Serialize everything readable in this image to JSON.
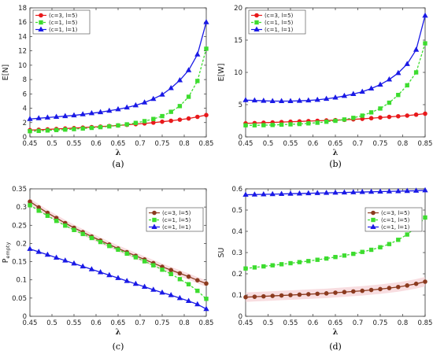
{
  "chart_data": [
    {
      "id": "a",
      "type": "line",
      "caption": "(a)",
      "ylabel": "E[N]",
      "xlabel": "λ",
      "xlim": [
        0.45,
        0.85
      ],
      "ylim": [
        0,
        18
      ],
      "xticks": [
        "0.45",
        "0.5",
        "0.55",
        "0.6",
        "0.65",
        "0.7",
        "0.75",
        "0.8",
        "0.85"
      ],
      "yticks": [
        "0",
        "2",
        "4",
        "6",
        "8",
        "10",
        "12",
        "14",
        "16",
        "18"
      ],
      "grid": false,
      "legend_position": "top-left",
      "x": [
        0.45,
        0.47,
        0.49,
        0.51,
        0.53,
        0.55,
        0.57,
        0.59,
        0.61,
        0.63,
        0.65,
        0.67,
        0.69,
        0.71,
        0.73,
        0.75,
        0.77,
        0.79,
        0.81,
        0.83,
        0.85
      ],
      "series": [
        {
          "name": "(c=3, l=5)",
          "color": "#e8191b",
          "marker": "circle",
          "dash": "solid",
          "values": [
            0.95,
            1.0,
            1.05,
            1.11,
            1.17,
            1.23,
            1.3,
            1.37,
            1.44,
            1.52,
            1.6,
            1.69,
            1.78,
            1.88,
            1.99,
            2.12,
            2.25,
            2.4,
            2.57,
            2.8,
            3.05
          ]
        },
        {
          "name": "(c=1, l=5)",
          "color": "#3ddc2f",
          "marker": "square",
          "dash": "dashed",
          "values": [
            0.8,
            0.84,
            0.9,
            0.96,
            1.02,
            1.09,
            1.17,
            1.26,
            1.36,
            1.47,
            1.6,
            1.75,
            1.95,
            2.2,
            2.5,
            2.9,
            3.5,
            4.3,
            5.6,
            7.8,
            12.3
          ]
        },
        {
          "name": "(c=1, l=1)",
          "color": "#1a1ae6",
          "marker": "triangle",
          "dash": "solid",
          "values": [
            2.5,
            2.6,
            2.7,
            2.8,
            2.9,
            3.0,
            3.15,
            3.3,
            3.45,
            3.65,
            3.85,
            4.1,
            4.4,
            4.8,
            5.3,
            5.9,
            6.8,
            7.9,
            9.3,
            11.5,
            16.0
          ]
        }
      ]
    },
    {
      "id": "b",
      "type": "line",
      "caption": "(b)",
      "ylabel": "E[W]",
      "xlabel": "λ",
      "xlim": [
        0.45,
        0.85
      ],
      "ylim": [
        0,
        20
      ],
      "xticks": [
        "0.45",
        "0.5",
        "0.55",
        "0.6",
        "0.65",
        "0.7",
        "0.75",
        "0.8",
        "0.85"
      ],
      "yticks": [
        "0",
        "5",
        "10",
        "15",
        "20"
      ],
      "grid": false,
      "legend_position": "top-left",
      "x": [
        0.45,
        0.47,
        0.49,
        0.51,
        0.53,
        0.55,
        0.57,
        0.59,
        0.61,
        0.63,
        0.65,
        0.67,
        0.69,
        0.71,
        0.73,
        0.75,
        0.77,
        0.79,
        0.81,
        0.83,
        0.85
      ],
      "series": [
        {
          "name": "(c=3, l=5)",
          "color": "#e8191b",
          "marker": "circle",
          "dash": "solid",
          "values": [
            2.1,
            2.15,
            2.2,
            2.25,
            2.3,
            2.35,
            2.4,
            2.45,
            2.5,
            2.55,
            2.6,
            2.65,
            2.72,
            2.8,
            2.9,
            3.0,
            3.1,
            3.2,
            3.3,
            3.45,
            3.6
          ]
        },
        {
          "name": "(c=1, l=5)",
          "color": "#3ddc2f",
          "marker": "square",
          "dash": "dashed",
          "values": [
            1.8,
            1.8,
            1.82,
            1.85,
            1.9,
            1.95,
            2.0,
            2.1,
            2.2,
            2.35,
            2.5,
            2.7,
            2.95,
            3.3,
            3.8,
            4.4,
            5.3,
            6.5,
            8.0,
            10.0,
            14.5
          ]
        },
        {
          "name": "(c=1, l=1)",
          "color": "#1a1ae6",
          "marker": "triangle",
          "dash": "solid",
          "values": [
            5.7,
            5.65,
            5.6,
            5.55,
            5.55,
            5.55,
            5.6,
            5.65,
            5.75,
            5.9,
            6.1,
            6.35,
            6.65,
            7.0,
            7.5,
            8.1,
            8.9,
            9.9,
            11.3,
            13.5,
            18.8
          ]
        }
      ]
    },
    {
      "id": "c",
      "type": "line",
      "caption": "(c)",
      "ylabel": "P empty",
      "ylabel_main": "P",
      "ylabel_sub": "empty",
      "xlabel": "λ",
      "xlim": [
        0.45,
        0.85
      ],
      "ylim": [
        0,
        0.35
      ],
      "xticks": [
        "0.45",
        "0.5",
        "0.55",
        "0.6",
        "0.65",
        "0.7",
        "0.75",
        "0.8",
        "0.85"
      ],
      "yticks": [
        "0",
        "0.05",
        "0.1",
        "0.15",
        "0.2",
        "0.25",
        "0.3",
        "0.35"
      ],
      "grid": false,
      "legend_position": "top-right",
      "x": [
        0.45,
        0.47,
        0.49,
        0.51,
        0.53,
        0.55,
        0.57,
        0.59,
        0.61,
        0.63,
        0.65,
        0.67,
        0.69,
        0.71,
        0.73,
        0.75,
        0.77,
        0.79,
        0.81,
        0.83,
        0.85
      ],
      "series": [
        {
          "name": "(c=3, l=5)",
          "color": "#8b3a1e",
          "marker": "circle",
          "dash": "solid",
          "values": [
            0.315,
            0.299,
            0.284,
            0.27,
            0.256,
            0.243,
            0.231,
            0.219,
            0.208,
            0.197,
            0.186,
            0.176,
            0.166,
            0.156,
            0.146,
            0.136,
            0.127,
            0.118,
            0.109,
            0.099,
            0.09
          ]
        },
        {
          "name": "(c=1, l=5)",
          "color": "#3ddc2f",
          "marker": "square",
          "dash": "dashed",
          "values": [
            0.305,
            0.29,
            0.276,
            0.262,
            0.249,
            0.237,
            0.226,
            0.215,
            0.204,
            0.193,
            0.183,
            0.172,
            0.162,
            0.151,
            0.14,
            0.128,
            0.116,
            0.102,
            0.088,
            0.07,
            0.048
          ]
        },
        {
          "name": "(c=1, l=1)",
          "color": "#1a1ae6",
          "marker": "triangle",
          "dash": "solid",
          "values": [
            0.185,
            0.177,
            0.169,
            0.161,
            0.153,
            0.145,
            0.137,
            0.129,
            0.121,
            0.113,
            0.105,
            0.097,
            0.089,
            0.081,
            0.073,
            0.065,
            0.058,
            0.05,
            0.042,
            0.033,
            0.02
          ]
        }
      ]
    },
    {
      "id": "d",
      "type": "line",
      "caption": "(d)",
      "ylabel": "SU",
      "xlabel": "λ",
      "xlim": [
        0.45,
        0.85
      ],
      "ylim": [
        0,
        0.6
      ],
      "xticks": [
        "0.45",
        "0.5",
        "0.55",
        "0.6",
        "0.65",
        "0.7",
        "0.75",
        "0.8",
        "0.85"
      ],
      "yticks": [
        "0",
        "0.1",
        "0.2",
        "0.3",
        "0.4",
        "0.5",
        "0.6"
      ],
      "grid": false,
      "legend_position": "top-right",
      "x": [
        0.45,
        0.47,
        0.49,
        0.51,
        0.53,
        0.55,
        0.57,
        0.59,
        0.61,
        0.63,
        0.65,
        0.67,
        0.69,
        0.71,
        0.73,
        0.75,
        0.77,
        0.79,
        0.81,
        0.83,
        0.85
      ],
      "series": [
        {
          "name": "(c=3, l=5)",
          "color": "#8b3a1e",
          "marker": "circle",
          "dash": "solid",
          "values": [
            0.09,
            0.092,
            0.094,
            0.096,
            0.098,
            0.1,
            0.102,
            0.104,
            0.106,
            0.108,
            0.111,
            0.114,
            0.117,
            0.12,
            0.124,
            0.128,
            0.133,
            0.138,
            0.145,
            0.153,
            0.163
          ]
        },
        {
          "name": "(c=1, l=5)",
          "color": "#3ddc2f",
          "marker": "square",
          "dash": "dashed",
          "values": [
            0.225,
            0.23,
            0.235,
            0.24,
            0.245,
            0.25,
            0.255,
            0.26,
            0.266,
            0.272,
            0.279,
            0.286,
            0.294,
            0.303,
            0.313,
            0.325,
            0.34,
            0.36,
            0.385,
            0.42,
            0.465
          ]
        },
        {
          "name": "(c=1, l=1)",
          "color": "#1a1ae6",
          "marker": "triangle",
          "dash": "solid",
          "values": [
            0.572,
            0.573,
            0.574,
            0.575,
            0.576,
            0.577,
            0.578,
            0.579,
            0.58,
            0.581,
            0.582,
            0.583,
            0.584,
            0.585,
            0.586,
            0.587,
            0.588,
            0.589,
            0.59,
            0.591,
            0.593
          ]
        }
      ]
    }
  ]
}
